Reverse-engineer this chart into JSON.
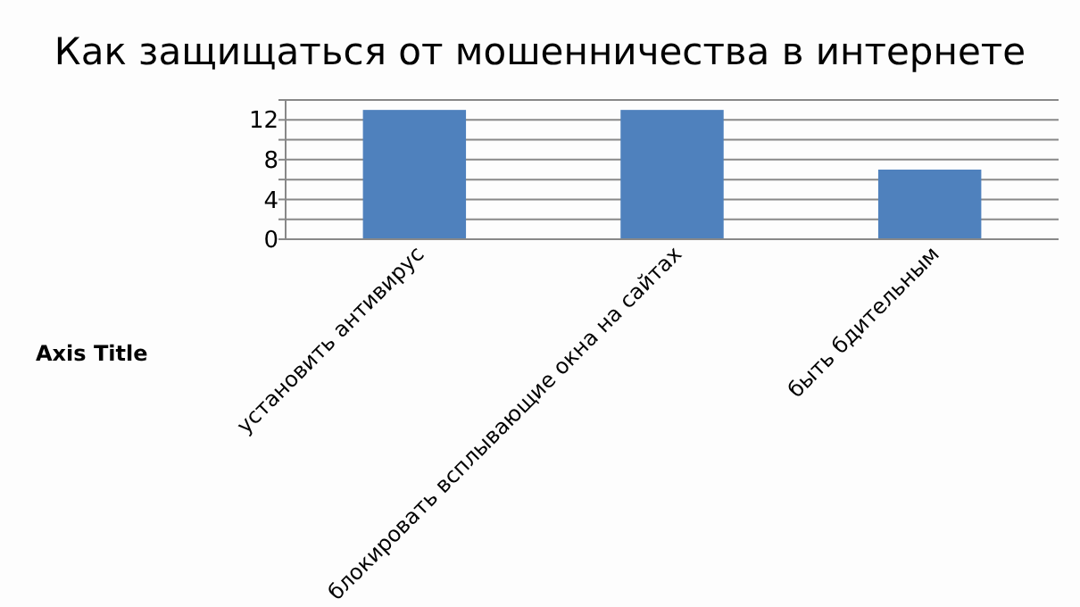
{
  "chart_data": {
    "type": "bar",
    "title": "Как защищаться от мошенничества в интернете",
    "ylabel": "Axis Title",
    "categories": [
      "установить антивирус",
      "блокировать всплывающие окна на сайтах",
      "быть бдительным"
    ],
    "values": [
      13,
      13,
      7
    ],
    "color": "#4f81bd",
    "ylim": [
      0,
      14
    ],
    "yticks": [
      0,
      {
        "value": 2,
        "label": null
      },
      4,
      {
        "value": 6,
        "label": null
      },
      8,
      {
        "value": 10,
        "label": null
      },
      12,
      {
        "value": 14,
        "label": null
      }
    ],
    "grid": "y"
  }
}
